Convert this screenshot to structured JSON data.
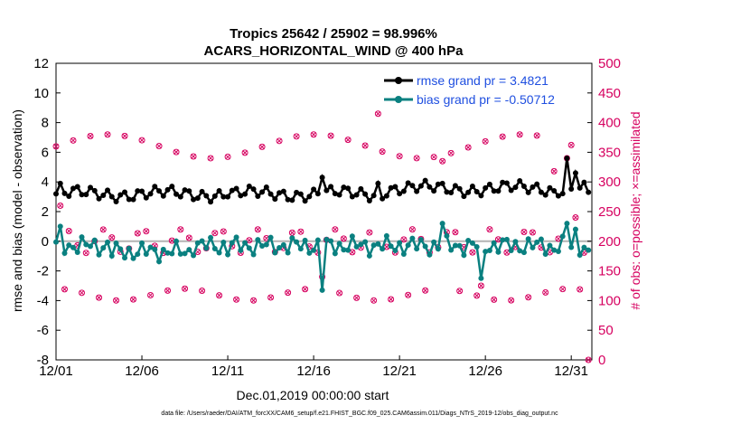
{
  "chart_data": {
    "type": "line",
    "title": "Tropics 25642 / 25902 = 98.996%",
    "subtitle": "ACARS_HORIZONTAL_WIND @ 400 hPa",
    "xlabel": "Dec.01,2019 00:00:00 start",
    "ylabel": "rmse and bias (model - observation)",
    "y2label": "# of obs: o=possible; ×=assimilated",
    "footnote": "data file: /Users/raeder/DAI/ATM_forcXX/CAM6_setup/f.e21.FHIST_BGC.f09_025.CAM6assim.011/Diags_NTrS_2019-12/obs_diag_output.nc",
    "xlim": [
      0,
      31.2
    ],
    "ylim": [
      -8,
      12
    ],
    "y2lim": [
      0,
      500
    ],
    "x_ticks": [
      0,
      5,
      10,
      15,
      20,
      25,
      30
    ],
    "x_tick_labels": [
      "12/01",
      "12/06",
      "12/11",
      "12/16",
      "12/21",
      "12/26",
      "12/31"
    ],
    "y_ticks": [
      -8,
      -6,
      -4,
      -2,
      0,
      2,
      4,
      6,
      8,
      10,
      12
    ],
    "y_tick_labels": [
      "-8",
      "-6",
      "-4",
      "-2",
      "0",
      "2",
      "4",
      "6",
      "8",
      "10",
      "12"
    ],
    "y2_ticks": [
      0,
      50,
      100,
      150,
      200,
      250,
      300,
      350,
      400,
      450,
      500
    ],
    "y2_tick_labels": [
      "0",
      "50",
      "100",
      "150",
      "200",
      "250",
      "300",
      "350",
      "400",
      "450",
      "500"
    ],
    "legend_position": "top-right",
    "series": [
      {
        "name": "rmse grand pr = 3.4821",
        "color": "#000000",
        "axis": "left"
      },
      {
        "name": "bias grand pr = -0.50712",
        "color": "#0a8080",
        "axis": "left"
      }
    ],
    "obs_color": "#d6005f",
    "step_days": 0.25,
    "rmse_base": 3.2,
    "bias_base": -0.3,
    "obs_level_a": 360,
    "obs_level_b": 110,
    "obs_level_c": 200,
    "highlights": [
      {
        "x": 0.25,
        "rmse": 3.9,
        "bias": 1.0,
        "obs": 260
      },
      {
        "x": 10.0,
        "rmse": 3.0,
        "bias": -0.9
      },
      {
        "x": 15.6,
        "rmse": 4.3,
        "bias": -3.3,
        "obs": 140
      },
      {
        "x": 18.8,
        "rmse": 3.9,
        "obs": 415
      },
      {
        "x": 22.6,
        "rmse": 3.9,
        "bias": 1.2,
        "obs": 335
      },
      {
        "x": 24.8,
        "bias": -2.5,
        "obs": 125
      },
      {
        "x": 29.0,
        "rmse": 3.4,
        "bias": -0.6,
        "obs": 318
      },
      {
        "x": 29.7,
        "rmse": 5.6,
        "bias": 1.2,
        "obs": 340
      },
      {
        "x": 30.3,
        "rmse": 4.6,
        "bias": 0.8,
        "obs": 240
      },
      {
        "x": 31.0,
        "rmse": 3.3,
        "bias": -0.6,
        "obs": 0
      }
    ]
  }
}
